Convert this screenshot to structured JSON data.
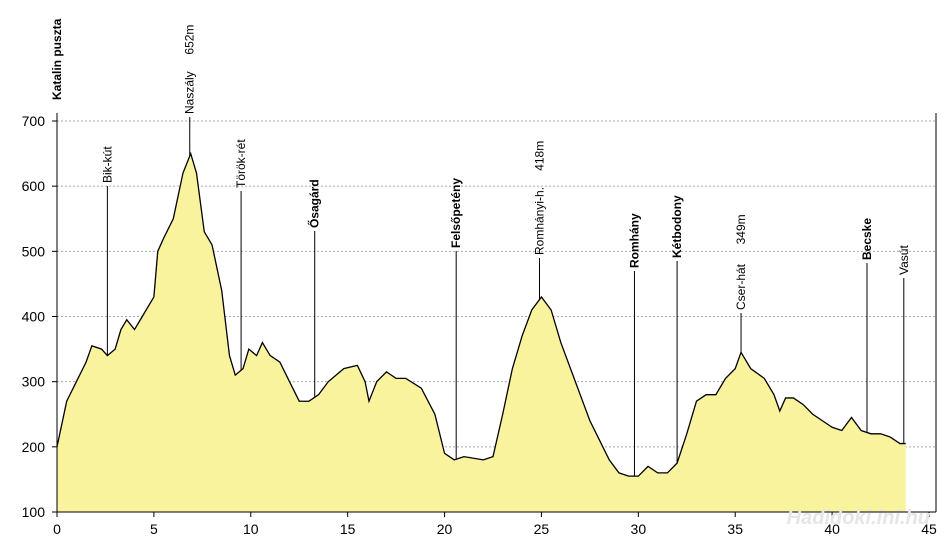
{
  "chart_data": {
    "type": "area",
    "color": "#faf39e",
    "line_color": "#000000",
    "grid": true,
    "xlim": [
      0,
      45
    ],
    "ylim": [
      100,
      700
    ],
    "xticks": [
      0,
      5,
      10,
      15,
      20,
      25,
      30,
      35,
      40,
      45
    ],
    "yticks": [
      100,
      200,
      300,
      400,
      500,
      600,
      700
    ],
    "x": [
      0,
      0.5,
      1,
      1.5,
      1.8,
      2.3,
      2.6,
      3.0,
      3.3,
      3.6,
      4.0,
      4.4,
      5.0,
      5.2,
      5.5,
      6.0,
      6.5,
      6.9,
      7.2,
      7.6,
      8.0,
      8.5,
      8.9,
      9.2,
      9.6,
      9.9,
      10.3,
      10.6,
      11,
      11.5,
      12,
      12.5,
      13,
      13.5,
      14,
      14.8,
      15.5,
      15.9,
      16.1,
      16.5,
      17,
      17.5,
      18,
      18.8,
      19.5,
      20,
      20.5,
      21,
      22,
      22.5,
      23,
      23.5,
      24,
      24.5,
      25,
      25.5,
      26,
      26.5,
      27,
      27.5,
      28,
      28.5,
      29,
      29.5,
      30,
      30.5,
      31,
      31.5,
      32,
      32.5,
      33,
      33.5,
      34,
      34.5,
      35,
      35.3,
      35.8,
      36.5,
      37,
      37.3,
      37.6,
      38,
      38.5,
      39,
      39.5,
      40,
      40.5,
      41,
      41.5,
      42,
      42.5,
      43,
      43.5,
      43.8
    ],
    "values": [
      200,
      270,
      300,
      330,
      355,
      350,
      340,
      350,
      380,
      395,
      380,
      400,
      430,
      500,
      520,
      550,
      620,
      650,
      620,
      530,
      510,
      440,
      340,
      310,
      320,
      350,
      340,
      360,
      340,
      330,
      300,
      270,
      270,
      280,
      300,
      320,
      325,
      300,
      270,
      300,
      315,
      305,
      305,
      290,
      250,
      190,
      180,
      185,
      180,
      185,
      250,
      320,
      370,
      410,
      430,
      410,
      360,
      320,
      280,
      240,
      210,
      180,
      160,
      155,
      155,
      170,
      160,
      160,
      175,
      220,
      270,
      280,
      280,
      305,
      320,
      345,
      320,
      305,
      280,
      255,
      275,
      275,
      265,
      250,
      240,
      230,
      225,
      245,
      225,
      220,
      220,
      215,
      205,
      205
    ],
    "annotations": [
      {
        "x": 0,
        "label": "Katalin puszta",
        "bold": true
      },
      {
        "x": 2.6,
        "label": "Bik-kút"
      },
      {
        "x": 6.85,
        "label": "Naszály",
        "height_label": "652m"
      },
      {
        "x": 9.5,
        "label": "Török-rét"
      },
      {
        "x": 13.3,
        "label": "Ősagárd",
        "bold": true
      },
      {
        "x": 20.6,
        "label": "Felsőpetény",
        "bold": true
      },
      {
        "x": 24.9,
        "label": "Romhányi-h.",
        "height_label": "418m"
      },
      {
        "x": 29.8,
        "label": "Romhány",
        "bold": true
      },
      {
        "x": 32.0,
        "label": "Kétbodony",
        "bold": true
      },
      {
        "x": 35.3,
        "label": "Cser-hát",
        "height_label": "349m"
      },
      {
        "x": 41.8,
        "label": "Becske",
        "bold": true
      },
      {
        "x": 43.7,
        "label": "Vasút"
      }
    ],
    "watermark": "Hadidoki.ini.hu"
  }
}
